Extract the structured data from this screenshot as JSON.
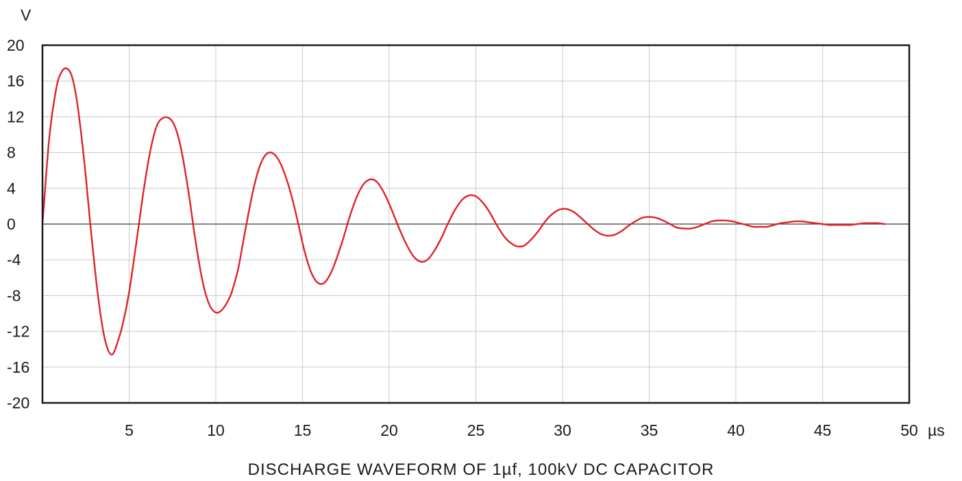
{
  "chart_data": {
    "type": "line",
    "title": "DISCHARGE WAVEFORM OF 1µf, 100kV DC CAPACITOR",
    "ylabel": "V",
    "xunit": "µs",
    "xlim": [
      0,
      50
    ],
    "ylim": [
      -20,
      20
    ],
    "x_ticks": [
      5,
      10,
      15,
      20,
      25,
      30,
      35,
      40,
      45,
      50
    ],
    "x_tick_labels": [
      "5",
      "10",
      "15",
      "20",
      "25",
      "30",
      "35",
      "40",
      "45",
      "50"
    ],
    "y_ticks": [
      20,
      16,
      12,
      8,
      4,
      0,
      -4,
      -8,
      -12,
      -16,
      -20
    ],
    "y_tick_labels": [
      "20",
      "16",
      "12",
      "8",
      "4",
      "0",
      "-4",
      "-8",
      "-12",
      "-16",
      "-20"
    ],
    "grid": true,
    "line_color": "#e0202a",
    "series": [
      {
        "x": [
          0,
          0.4,
          0.8,
          1.1,
          1.4,
          1.7,
          2.0,
          2.4,
          2.8,
          3.2,
          3.6,
          4.0,
          4.4,
          4.7,
          5.0,
          5.4,
          5.8,
          6.2,
          6.6,
          7.0,
          7.4,
          7.7,
          8.0,
          8.4,
          8.8,
          9.2,
          9.6,
          10.0,
          10.4,
          10.8,
          11.0,
          11.3,
          11.7,
          12.1,
          12.5,
          12.9,
          13.3,
          13.7,
          14.1,
          14.4,
          14.7,
          15.1,
          15.5,
          15.9,
          16.3,
          16.7,
          17.1,
          17.4,
          17.7,
          18.1,
          18.5,
          18.9,
          19.3,
          19.7,
          20.1,
          20.6,
          21.0,
          21.4,
          21.8,
          22.2,
          22.6,
          23.0,
          23.4,
          23.8,
          24.2,
          24.6,
          25.0,
          25.4,
          25.8,
          26.2,
          26.6,
          27.0,
          27.4,
          27.8,
          28.2,
          28.6,
          29.0,
          29.4,
          29.8,
          30.2,
          30.6,
          31.0,
          31.4,
          31.8,
          32.2,
          32.6,
          33.0,
          33.4,
          33.8,
          34.2,
          34.6,
          35.0,
          35.4,
          35.8,
          36.2,
          36.6,
          37.0,
          37.4,
          37.8,
          38.2,
          38.6,
          39.0,
          39.4,
          39.8,
          40.2,
          40.6,
          41.0,
          41.4,
          41.8,
          42.2,
          42.6,
          43.0,
          43.4,
          43.8,
          44.2,
          44.6,
          45.0,
          45.4,
          45.8,
          46.2,
          46.6,
          47.0,
          47.4,
          47.8,
          48.2,
          48.6
        ],
        "y": [
          0,
          9.8,
          15.2,
          17.0,
          17.4,
          16.5,
          13.6,
          7.2,
          -0.8,
          -8.0,
          -12.9,
          -14.6,
          -12.8,
          -10.6,
          -7.6,
          -2.3,
          3.3,
          8.0,
          11.0,
          11.9,
          11.7,
          10.6,
          8.4,
          3.9,
          -1.5,
          -6.1,
          -8.9,
          -9.9,
          -9.5,
          -8.2,
          -7.1,
          -4.9,
          -0.7,
          3.3,
          6.3,
          7.8,
          7.9,
          6.9,
          4.9,
          2.9,
          0.5,
          -2.9,
          -5.4,
          -6.6,
          -6.5,
          -5.2,
          -3.1,
          -1.3,
          0.7,
          2.9,
          4.4,
          5.0,
          4.7,
          3.5,
          1.8,
          -0.6,
          -2.3,
          -3.6,
          -4.2,
          -4.0,
          -3.0,
          -1.6,
          0.1,
          1.6,
          2.7,
          3.2,
          3.1,
          2.4,
          1.3,
          -0.1,
          -1.3,
          -2.1,
          -2.5,
          -2.4,
          -1.7,
          -0.8,
          0.3,
          1.1,
          1.6,
          1.7,
          1.4,
          0.8,
          0.1,
          -0.6,
          -1.1,
          -1.3,
          -1.2,
          -0.8,
          -0.2,
          0.3,
          0.7,
          0.8,
          0.7,
          0.4,
          0.0,
          -0.4,
          -0.5,
          -0.5,
          -0.3,
          0.0,
          0.3,
          0.4,
          0.4,
          0.3,
          0.1,
          -0.1,
          -0.3,
          -0.3,
          -0.3,
          -0.1,
          0.1,
          0.2,
          0.3,
          0.3,
          0.2,
          0.1,
          0.0,
          -0.1,
          -0.1,
          -0.1,
          -0.1,
          0.0,
          0.1,
          0.1,
          0.1,
          0.0
        ]
      }
    ]
  }
}
